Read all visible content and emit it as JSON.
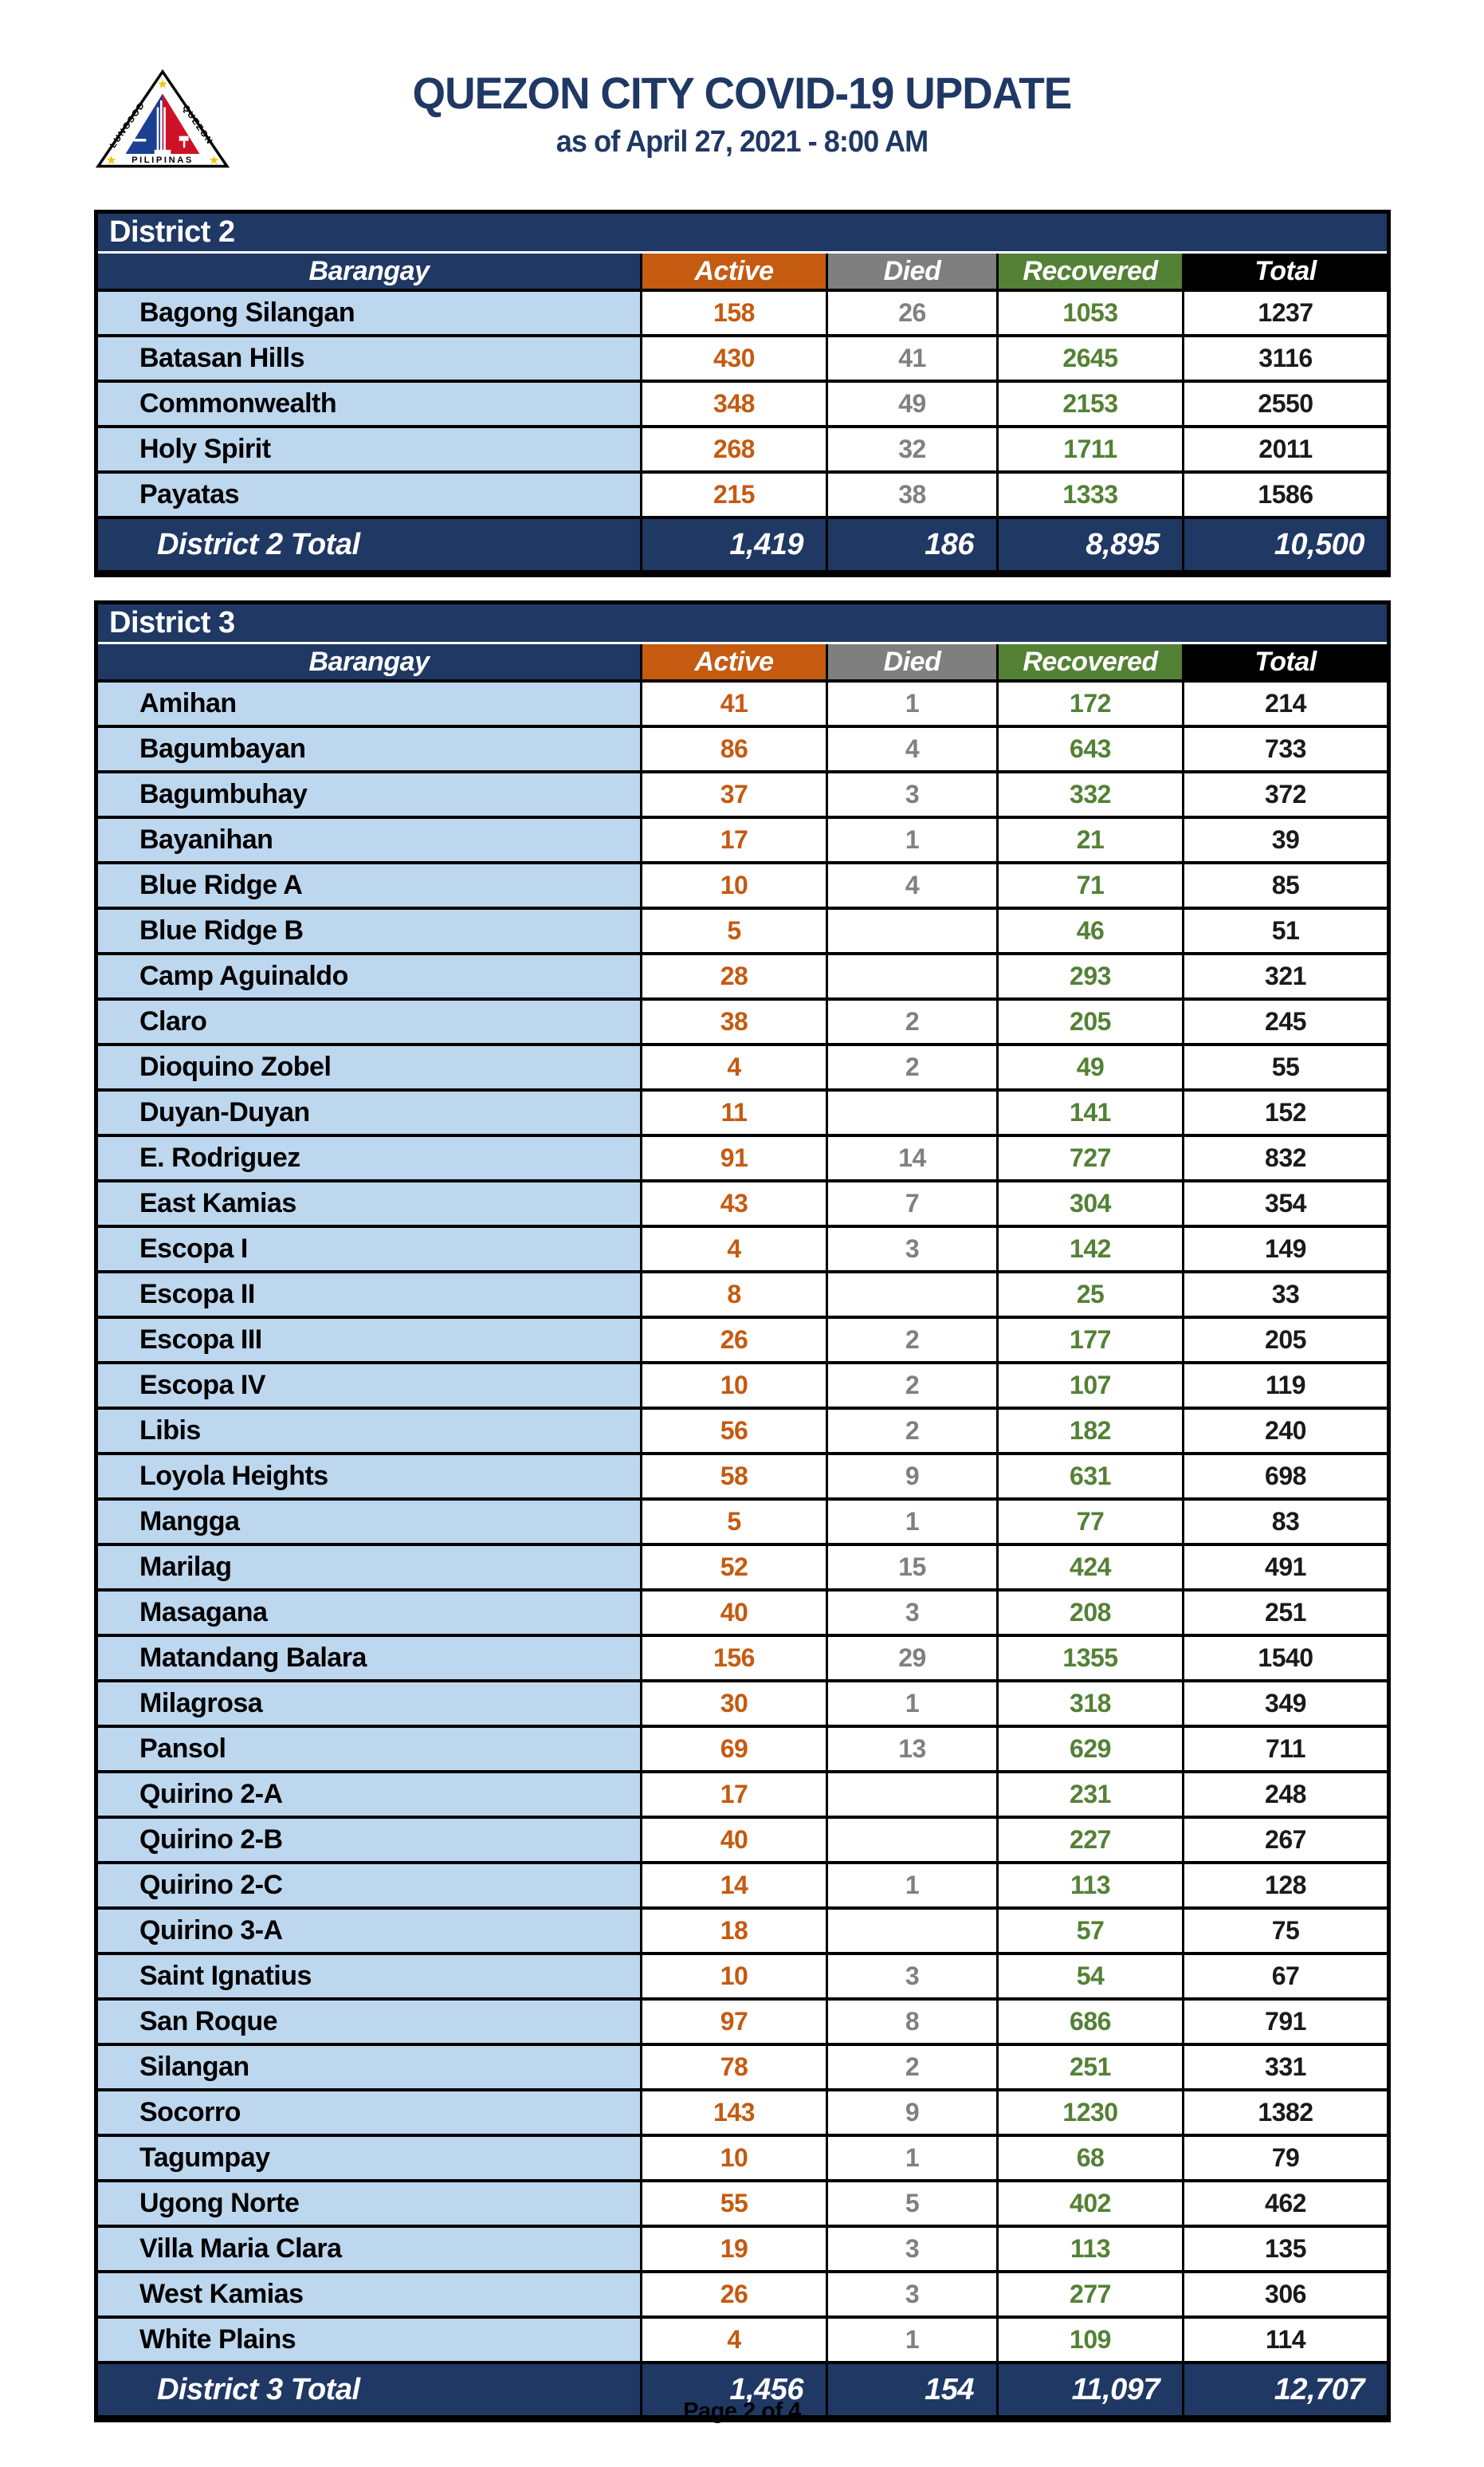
{
  "header": {
    "title": "QUEZON CITY COVID-19 UPDATE",
    "subtitle": "as of April 27, 2021 - 8:00 AM",
    "logo": {
      "name": "quezon-city-seal",
      "text_left": "LUNGSOD",
      "text_right": "QUEZON",
      "text_bottom": "PILIPINAS"
    }
  },
  "columns": [
    "Barangay",
    "Active",
    "Died",
    "Recovered",
    "Total"
  ],
  "colors": {
    "navy": "#1F3864",
    "orange": "#C55A11",
    "gray": "#7F7F7F",
    "green": "#538135",
    "light_blue": "#BDD7EE",
    "total_header_bg": "#000000",
    "active_text": "#C55A11",
    "died_text": "#808080",
    "recovered_text": "#538135",
    "total_text": "#1a1a1a",
    "title_text": "#1F3864"
  },
  "tables": [
    {
      "district": "District 2",
      "rows": [
        [
          "Bagong Silangan",
          158,
          26,
          1053,
          1237
        ],
        [
          "Batasan Hills",
          430,
          41,
          2645,
          3116
        ],
        [
          "Commonwealth",
          348,
          49,
          2153,
          2550
        ],
        [
          "Holy Spirit",
          268,
          32,
          1711,
          2011
        ],
        [
          "Payatas",
          215,
          38,
          1333,
          1586
        ]
      ],
      "total_label": "District 2 Total",
      "totals": [
        "1,419",
        "186",
        "8,895",
        "10,500"
      ]
    },
    {
      "district": "District 3",
      "rows": [
        [
          "Amihan",
          41,
          1,
          172,
          214
        ],
        [
          "Bagumbayan",
          86,
          4,
          643,
          733
        ],
        [
          "Bagumbuhay",
          37,
          3,
          332,
          372
        ],
        [
          "Bayanihan",
          17,
          1,
          21,
          39
        ],
        [
          "Blue Ridge A",
          10,
          4,
          71,
          85
        ],
        [
          "Blue Ridge B",
          5,
          "",
          46,
          51
        ],
        [
          "Camp Aguinaldo",
          28,
          "",
          293,
          321
        ],
        [
          "Claro",
          38,
          2,
          205,
          245
        ],
        [
          "Dioquino Zobel",
          4,
          2,
          49,
          55
        ],
        [
          "Duyan-Duyan",
          11,
          "",
          141,
          152
        ],
        [
          "E. Rodriguez",
          91,
          14,
          727,
          832
        ],
        [
          "East Kamias",
          43,
          7,
          304,
          354
        ],
        [
          "Escopa I",
          4,
          3,
          142,
          149
        ],
        [
          "Escopa II",
          8,
          "",
          25,
          33
        ],
        [
          "Escopa III",
          26,
          2,
          177,
          205
        ],
        [
          "Escopa IV",
          10,
          2,
          107,
          119
        ],
        [
          "Libis",
          56,
          2,
          182,
          240
        ],
        [
          "Loyola Heights",
          58,
          9,
          631,
          698
        ],
        [
          "Mangga",
          5,
          1,
          77,
          83
        ],
        [
          "Marilag",
          52,
          15,
          424,
          491
        ],
        [
          "Masagana",
          40,
          3,
          208,
          251
        ],
        [
          "Matandang Balara",
          156,
          29,
          1355,
          1540
        ],
        [
          "Milagrosa",
          30,
          1,
          318,
          349
        ],
        [
          "Pansol",
          69,
          13,
          629,
          711
        ],
        [
          "Quirino 2-A",
          17,
          "",
          231,
          248
        ],
        [
          "Quirino 2-B",
          40,
          "",
          227,
          267
        ],
        [
          "Quirino 2-C",
          14,
          1,
          113,
          128
        ],
        [
          "Quirino 3-A",
          18,
          "",
          57,
          75
        ],
        [
          "Saint Ignatius",
          10,
          3,
          54,
          67
        ],
        [
          "San Roque",
          97,
          8,
          686,
          791
        ],
        [
          "Silangan",
          78,
          2,
          251,
          331
        ],
        [
          "Socorro",
          143,
          9,
          1230,
          1382
        ],
        [
          "Tagumpay",
          10,
          1,
          68,
          79
        ],
        [
          "Ugong Norte",
          55,
          5,
          402,
          462
        ],
        [
          "Villa Maria Clara",
          19,
          3,
          113,
          135
        ],
        [
          "West Kamias",
          26,
          3,
          277,
          306
        ],
        [
          "White Plains",
          4,
          1,
          109,
          114
        ]
      ],
      "total_label": "District 3 Total",
      "totals": [
        "1,456",
        "154",
        "11,097",
        "12,707"
      ]
    }
  ],
  "footer": {
    "page_label": "Page 2 of 4"
  }
}
